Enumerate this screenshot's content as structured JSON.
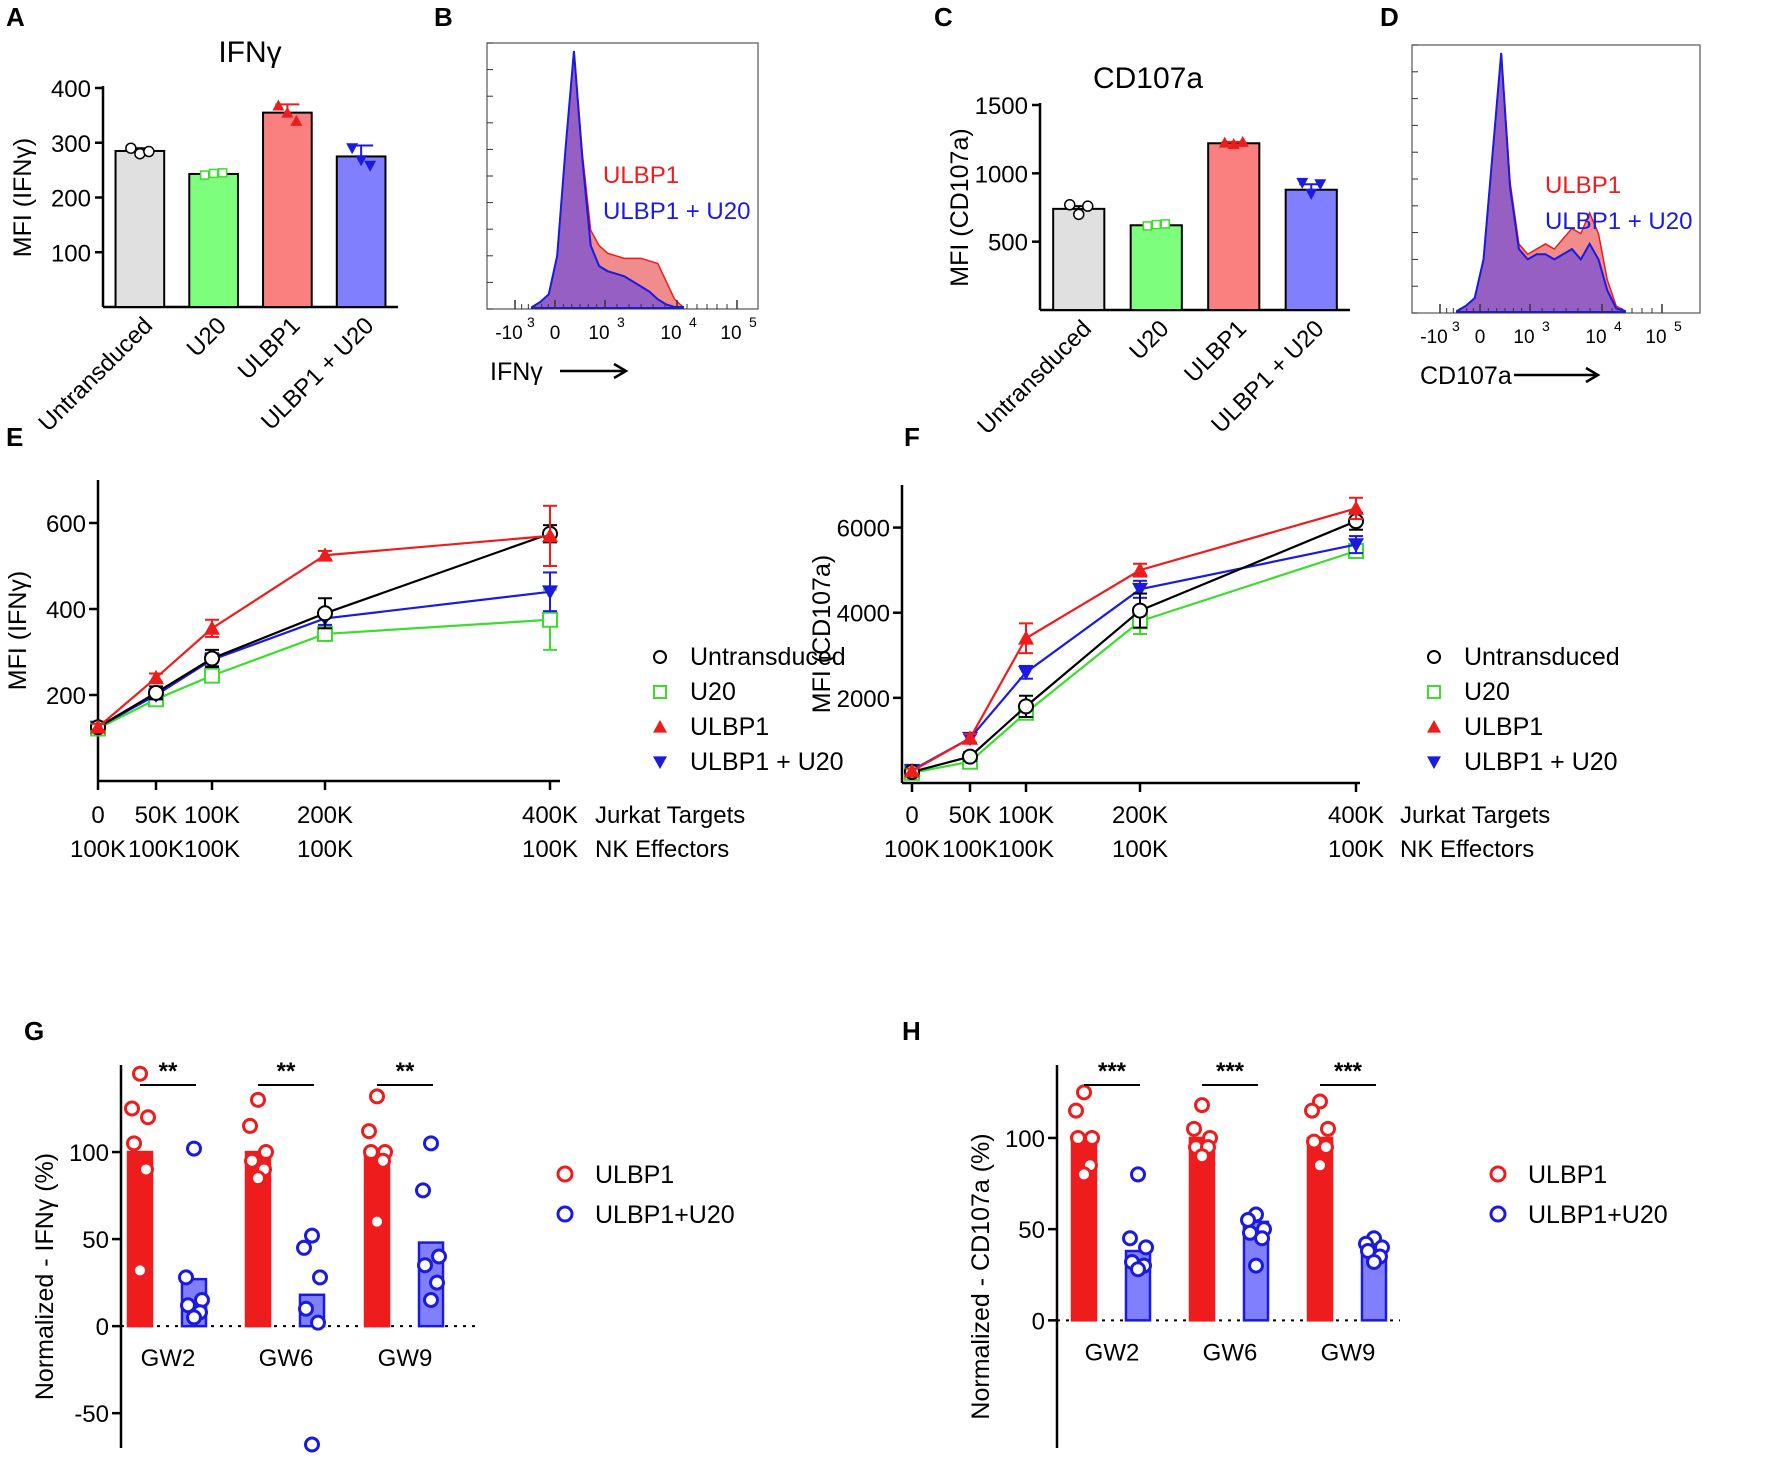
{
  "colors": {
    "untransduced": "#000000",
    "u20": "#3ddc2e",
    "ulbp1": "#ee1c1c",
    "ulbp1_u20": "#1a1ae0",
    "untransduced_fill": "#e0e0e0",
    "u20_fill": "#7dff7d",
    "ulbp1_fill": "#fa8080",
    "ulbp1_u20_fill": "#8080ff",
    "hist_red": "#f08c8c",
    "hist_purple": "#8c5ac8"
  },
  "chart_data": [
    {
      "panel": "A",
      "type": "bar",
      "title": "IFNγ",
      "ylabel": "MFI (IFNγ)",
      "ylim": [
        0,
        400
      ],
      "yticks": [
        "100",
        "200",
        "300",
        "400"
      ],
      "categories": [
        "Untransduced",
        "U20",
        "ULBP1",
        "ULBP1 + U20"
      ],
      "values": [
        285,
        243,
        355,
        275
      ],
      "errors": [
        5,
        3,
        15,
        20
      ],
      "points": [
        [
          290,
          280,
          284
        ],
        [
          241,
          244,
          245
        ],
        [
          368,
          355,
          340
        ],
        [
          290,
          268,
          258
        ]
      ]
    },
    {
      "panel": "B",
      "type": "area",
      "xlabel": "IFNγ",
      "xticks": [
        {
          "base": "-10",
          "exp": "3"
        },
        {
          "base": "0",
          "exp": ""
        },
        {
          "base": "10",
          "exp": "3"
        },
        {
          "base": "10",
          "exp": "4"
        },
        {
          "base": "10",
          "exp": "5"
        }
      ],
      "series": [
        {
          "name": "ULBP1",
          "values": [
            0,
            2,
            5,
            20,
            60,
            100,
            60,
            30,
            24,
            21,
            20,
            19,
            19,
            19,
            18,
            17,
            10,
            3,
            0
          ]
        },
        {
          "name": "ULBP1 + U20",
          "values": [
            0,
            2,
            5,
            20,
            62,
            100,
            58,
            24,
            16,
            14,
            13,
            12,
            10,
            8,
            6,
            3,
            1,
            0,
            0
          ]
        }
      ]
    },
    {
      "panel": "C",
      "type": "bar",
      "title": "CD107a",
      "ylabel": "MFI (CD107a)",
      "ylim": [
        0,
        1500
      ],
      "yticks": [
        "500",
        "1000",
        "1500"
      ],
      "categories": [
        "Untransduced",
        "U20",
        "ULBP1",
        "ULBP1 + U20"
      ],
      "values": [
        740,
        620,
        1220,
        880
      ],
      "errors": [
        20,
        10,
        10,
        40
      ],
      "points": [
        [
          770,
          700,
          760
        ],
        [
          615,
          625,
          630
        ],
        [
          1225,
          1215,
          1230
        ],
        [
          930,
          850,
          920
        ]
      ]
    },
    {
      "panel": "D",
      "type": "area",
      "xlabel": "CD107a",
      "xticks": [
        {
          "base": "-10",
          "exp": "3"
        },
        {
          "base": "0",
          "exp": ""
        },
        {
          "base": "10",
          "exp": "3"
        },
        {
          "base": "10",
          "exp": "4"
        },
        {
          "base": "10",
          "exp": "5"
        }
      ],
      "series": [
        {
          "name": "ULBP1",
          "values": [
            0,
            2,
            5,
            20,
            60,
            100,
            50,
            26,
            22,
            24,
            26,
            24,
            28,
            32,
            30,
            38,
            30,
            12,
            2,
            0
          ]
        },
        {
          "name": "ULBP1 + U20",
          "values": [
            0,
            2,
            5,
            20,
            60,
            100,
            48,
            24,
            20,
            22,
            22,
            20,
            22,
            24,
            20,
            26,
            20,
            8,
            1,
            0
          ]
        }
      ]
    },
    {
      "panel": "E",
      "type": "line",
      "ylabel": "MFI (IFNγ)",
      "ylim": [
        0,
        700
      ],
      "yticks": [
        "200",
        "400",
        "600"
      ],
      "x": [
        0,
        50,
        100,
        200,
        400
      ],
      "xticks_row1": [
        "0",
        "50K",
        "100K",
        "200K",
        "400K"
      ],
      "xticks_row2": [
        "100K",
        "100K",
        "100K",
        "100K",
        "100K"
      ],
      "row1_label": "Jurkat Targets",
      "row2_label": "NK Effectors",
      "series": [
        {
          "name": "Untransduced",
          "values": [
            125,
            205,
            285,
            390,
            575
          ],
          "errors": [
            8,
            15,
            20,
            35,
            20
          ]
        },
        {
          "name": "U20",
          "values": [
            122,
            190,
            245,
            342,
            375
          ],
          "errors": [
            8,
            10,
            15,
            15,
            70
          ]
        },
        {
          "name": "ULBP1",
          "values": [
            125,
            240,
            355,
            525,
            570
          ],
          "errors": [
            8,
            10,
            20,
            10,
            70
          ]
        },
        {
          "name": "ULBP1 + U20",
          "values": [
            125,
            200,
            282,
            378,
            440
          ],
          "errors": [
            8,
            10,
            15,
            15,
            45
          ]
        }
      ]
    },
    {
      "panel": "F",
      "type": "line",
      "ylabel": "MFI (CD107a)",
      "ylim": [
        0,
        7000
      ],
      "yticks": [
        "2000",
        "4000",
        "6000"
      ],
      "x": [
        0,
        50,
        100,
        200,
        400
      ],
      "xticks_row1": [
        "0",
        "50K",
        "100K",
        "200K",
        "400K"
      ],
      "xticks_row2": [
        "100K",
        "100K",
        "100K",
        "100K",
        "100K"
      ],
      "row1_label": "Jurkat Targets",
      "row2_label": "NK Effectors",
      "series": [
        {
          "name": "Untransduced",
          "values": [
            260,
            620,
            1800,
            4050,
            6150
          ],
          "errors": [
            60,
            100,
            250,
            400,
            200
          ]
        },
        {
          "name": "U20",
          "values": [
            240,
            500,
            1650,
            3800,
            5450
          ],
          "errors": [
            60,
            100,
            150,
            300,
            150
          ]
        },
        {
          "name": "ULBP1",
          "values": [
            280,
            1050,
            3400,
            5000,
            6450
          ],
          "errors": [
            60,
            100,
            350,
            150,
            250
          ]
        },
        {
          "name": "ULBP1 + U20",
          "values": [
            300,
            1050,
            2600,
            4550,
            5600
          ],
          "errors": [
            60,
            100,
            150,
            200,
            200
          ]
        }
      ]
    },
    {
      "panel": "G",
      "type": "scatter",
      "ylabel": "Normalized - IFNγ (%)",
      "ylim": [
        -70,
        150
      ],
      "yticks": [
        "-50",
        "0",
        "50",
        "100"
      ],
      "categories": [
        "GW2",
        "GW6",
        "GW9"
      ],
      "significance": [
        "**",
        "**",
        "**"
      ],
      "series": [
        {
          "name": "ULBP1",
          "bars": [
            100,
            100,
            100
          ],
          "points": [
            [
              145,
              125,
              120,
              105,
              90,
              32
            ],
            [
              130,
              115,
              100,
              95,
              90,
              85
            ],
            [
              132,
              112,
              100,
              100,
              95,
              60
            ]
          ]
        },
        {
          "name": "ULBP1+U20",
          "bars": [
            27,
            18,
            48
          ],
          "points": [
            [
              102,
              28,
              15,
              12,
              8,
              5
            ],
            [
              52,
              45,
              28,
              10,
              2,
              -68
            ],
            [
              105,
              78,
              40,
              35,
              25,
              15
            ]
          ]
        }
      ]
    },
    {
      "panel": "H",
      "type": "scatter",
      "ylabel": "Normalized - CD107a (%)",
      "ylim": [
        -70,
        140
      ],
      "yticks": [
        "0",
        "50",
        "100"
      ],
      "categories": [
        "GW2",
        "GW6",
        "GW9"
      ],
      "significance": [
        "***",
        "***",
        "***"
      ],
      "series": [
        {
          "name": "ULBP1",
          "bars": [
            100,
            100,
            100
          ],
          "points": [
            [
              125,
              115,
              100,
              100,
              85,
              80
            ],
            [
              118,
              105,
              100,
              95,
              95,
              90
            ],
            [
              120,
              115,
              105,
              98,
              95,
              85
            ]
          ]
        },
        {
          "name": "ULBP1+U20",
          "bars": [
            38,
            54,
            39
          ],
          "points": [
            [
              80,
              45,
              40,
              32,
              30,
              28
            ],
            [
              58,
              55,
              50,
              48,
              45,
              30
            ],
            [
              45,
              42,
              40,
              38,
              35,
              32
            ]
          ]
        }
      ]
    }
  ]
}
